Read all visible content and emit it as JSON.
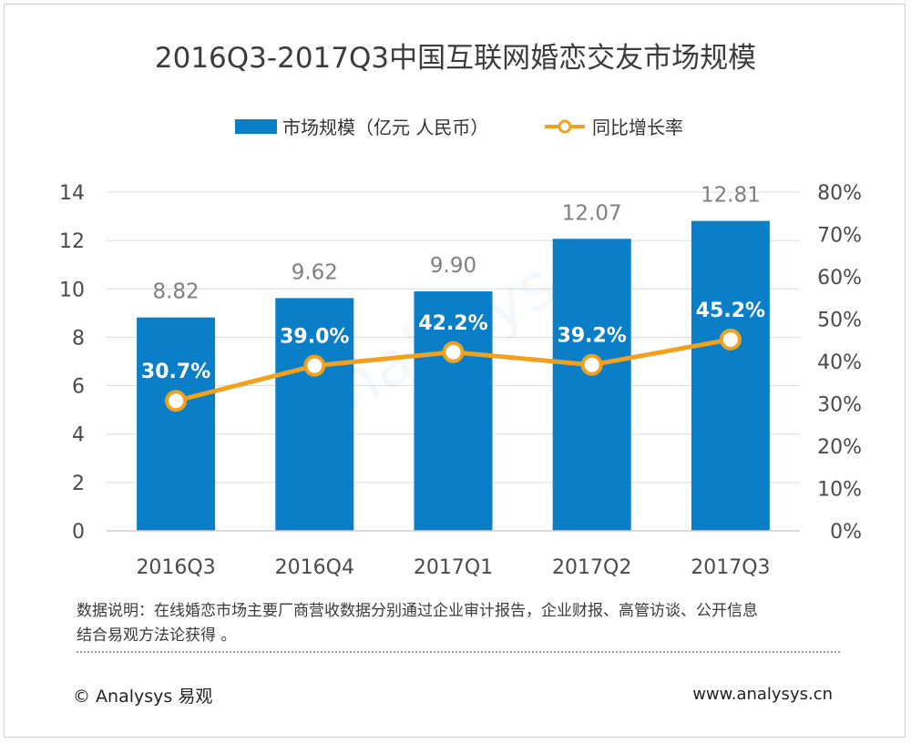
{
  "chart_data": {
    "type": "bar",
    "title": "2016Q3-2017Q3中国互联网婚恋交友市场规模",
    "categories": [
      "2016Q3",
      "2016Q4",
      "2017Q1",
      "2017Q2",
      "2017Q3"
    ],
    "series": [
      {
        "name": "市场规模（亿元 人民币）",
        "type": "bar",
        "axis": "left",
        "values": [
          8.82,
          9.62,
          9.9,
          12.07,
          12.81
        ],
        "labels": [
          "8.82",
          "9.62",
          "9.90",
          "12.07",
          "12.81"
        ]
      },
      {
        "name": "同比增长率",
        "type": "line",
        "axis": "right",
        "values": [
          30.7,
          39.0,
          42.2,
          39.2,
          45.2
        ],
        "labels": [
          "30.7%",
          "39.0%",
          "42.2%",
          "39.2%",
          "45.2%"
        ]
      }
    ],
    "ylim": [
      0,
      14
    ],
    "yticks": [
      "0",
      "2",
      "4",
      "6",
      "8",
      "10",
      "12",
      "14"
    ],
    "y2lim": [
      0,
      80
    ],
    "y2ticks": [
      "0%",
      "10%",
      "20%",
      "30%",
      "40%",
      "50%",
      "60%",
      "70%",
      "80%"
    ],
    "grid": true,
    "legend_position": "top-center",
    "colors": {
      "bar": "#0a7fc8",
      "line": "#f0a21e",
      "grid": "#dcdcdc",
      "bar_label": "#7f7f7f",
      "line_label": "#ffffff",
      "axis_text": "#4a4a4a",
      "title": "#3c3c3c"
    }
  },
  "note": {
    "line1": "数据说明：在线婚恋市场主要厂商营收数据分别通过企业审计报告，企业财报、高管访谈、公开信息",
    "line2": "结合易观方法论获得 。"
  },
  "footer": {
    "copyright": "© Analysys 易观",
    "website": "www.analysys.cn"
  }
}
